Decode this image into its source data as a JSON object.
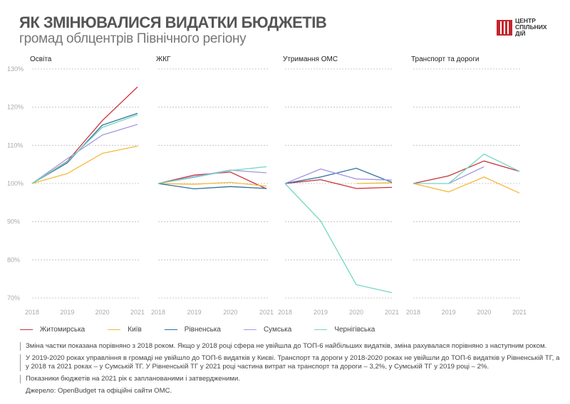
{
  "header": {
    "title": "ЯК ЗМІНЮВАЛИСЯ ВИДАТКИ БЮДЖЕТІВ",
    "subtitle": "громад облцентрів Північного регіону"
  },
  "logo": {
    "line1": "ЦЕНТР",
    "line2": "СПІЛЬНИХ",
    "line3": "ДІЙ",
    "color": "#c4262e"
  },
  "legend": [
    {
      "name": "Житомирська",
      "color": "#c9333b"
    },
    {
      "name": "Київ",
      "color": "#f5b93b"
    },
    {
      "name": "Рівненська",
      "color": "#2f6f9f"
    },
    {
      "name": "Сумська",
      "color": "#a797e0"
    },
    {
      "name": "Чернігівська",
      "color": "#6fd8c0"
    }
  ],
  "notes": [
    "Зміна частки показана порівняно з 2018 роком. Якщо у 2018 році сфера не увійшла до ТОП-6 найбільших видатків, зміна рахувалася порівняно з наступним роком.",
    "У 2019-2020 роках управління в громаді не увійшло до ТОП-6 видатків у Києві. Транспорт та дороги у 2018-2020 роках не увійшли до ТОП-6 видатків у Рівненській ТГ, а у 2018 та 2021 роках – у Сумській ТГ. У Рівненській ТГ у 2021 році частина витрат на транспорт та дороги – 3,2%, у Сумській ТГ у 2019 році – 2%.",
    "Показники бюджетів на 2021 рік є запланованими і затвердженими."
  ],
  "source": "Джерело: OpenBudget та офіційні сайти ОМС.",
  "chart_data": {
    "type": "line",
    "x": [
      "2018",
      "2019",
      "2020",
      "2021"
    ],
    "yticks": [
      "130%",
      "120%",
      "110%",
      "100%",
      "90%",
      "80%",
      "70%"
    ],
    "ylim": [
      70,
      130
    ],
    "grid": true,
    "legend_placement": "bottom",
    "panels": [
      {
        "title": "Освіта",
        "series": [
          {
            "name": "Житомирська",
            "values": [
              100,
              105.8,
              116.5,
              125.3
            ]
          },
          {
            "name": "Київ",
            "values": [
              100,
              102.6,
              107.9,
              109.8
            ]
          },
          {
            "name": "Рівненська",
            "values": [
              100,
              105.4,
              115.3,
              118.4
            ]
          },
          {
            "name": "Сумська",
            "values": [
              100,
              106.5,
              112.7,
              115.5
            ]
          },
          {
            "name": "Чернігівська",
            "values": [
              100,
              105.7,
              114.7,
              118.0
            ]
          }
        ]
      },
      {
        "title": "ЖКГ",
        "series": [
          {
            "name": "Житомирська",
            "values": [
              100,
              102.2,
              103.0,
              98.6
            ]
          },
          {
            "name": "Київ",
            "values": [
              100,
              99.8,
              100.3,
              99.3
            ]
          },
          {
            "name": "Рівненська",
            "values": [
              100,
              98.6,
              99.2,
              98.7
            ]
          },
          {
            "name": "Сумська",
            "values": [
              100,
              101.8,
              103.5,
              102.8
            ]
          },
          {
            "name": "Чернігівська",
            "values": [
              100,
              101.6,
              103.4,
              104.4
            ]
          }
        ]
      },
      {
        "title": "Утримання ОМС",
        "series": [
          {
            "name": "Житомирська",
            "values": [
              100,
              101.0,
              98.7,
              99.0
            ]
          },
          {
            "name": "Київ",
            "values": [
              null,
              null,
              100,
              100.2
            ]
          },
          {
            "name": "Рівненська",
            "values": [
              100,
              101.7,
              104.0,
              100.3
            ]
          },
          {
            "name": "Сумська",
            "values": [
              100,
              103.8,
              101.2,
              100.9
            ]
          },
          {
            "name": "Чернігівська",
            "values": [
              100,
              90.2,
              73.5,
              71.4
            ]
          }
        ]
      },
      {
        "title": "Транспорт та дороги",
        "series": [
          {
            "name": "Житомирська",
            "values": [
              100,
              102.0,
              105.9,
              103.2
            ]
          },
          {
            "name": "Київ",
            "values": [
              100,
              97.8,
              101.7,
              97.5
            ]
          },
          {
            "name": "Рівненська",
            "values": [
              null,
              null,
              null,
              null
            ]
          },
          {
            "name": "Сумська",
            "values": [
              null,
              100,
              104.4,
              null
            ]
          },
          {
            "name": "Чернігівська",
            "values": [
              100,
              100,
              107.7,
              103.2
            ]
          }
        ]
      }
    ]
  }
}
